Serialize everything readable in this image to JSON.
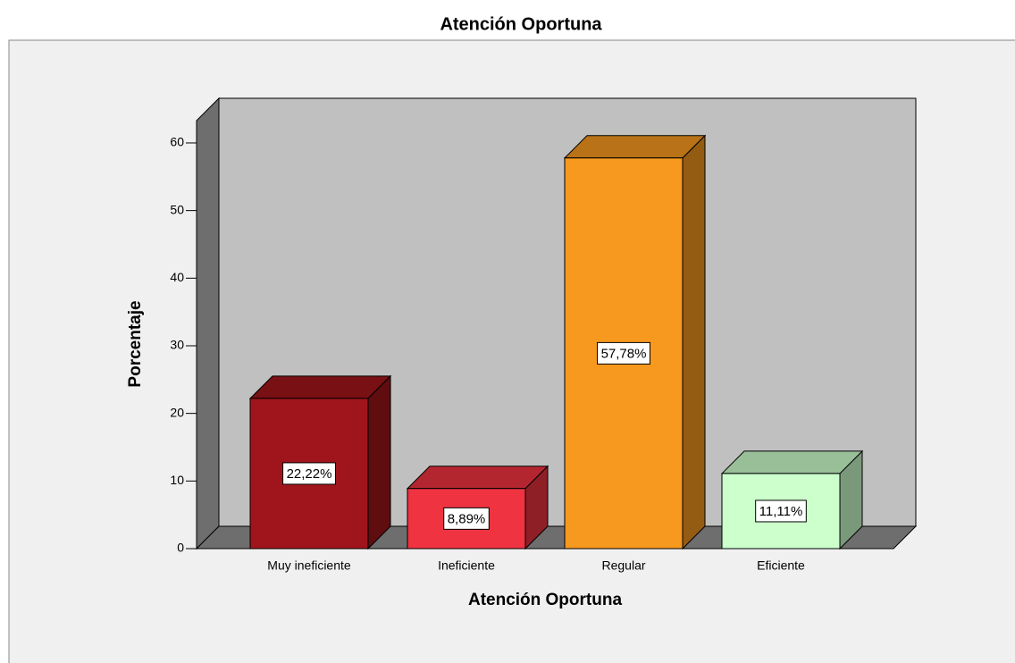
{
  "chart_data": {
    "type": "bar3d",
    "title": "Atención Oportuna",
    "x_label": "Atención Oportuna",
    "y_label": "Porcentaje",
    "categories": [
      "Muy ineficiente",
      "Ineficiente",
      "Regular",
      "Eficiente"
    ],
    "values": [
      22.22,
      8.89,
      57.78,
      11.11
    ],
    "value_labels": [
      "22,22%",
      "8,89%",
      "57,78%",
      "11,11%"
    ],
    "colors": [
      "#a0151b",
      "#ef3340",
      "#f7981f",
      "#ccffcc"
    ],
    "ylim": [
      0,
      63.3
    ],
    "yticks": [
      0,
      10,
      20,
      30,
      40,
      50,
      60
    ]
  }
}
